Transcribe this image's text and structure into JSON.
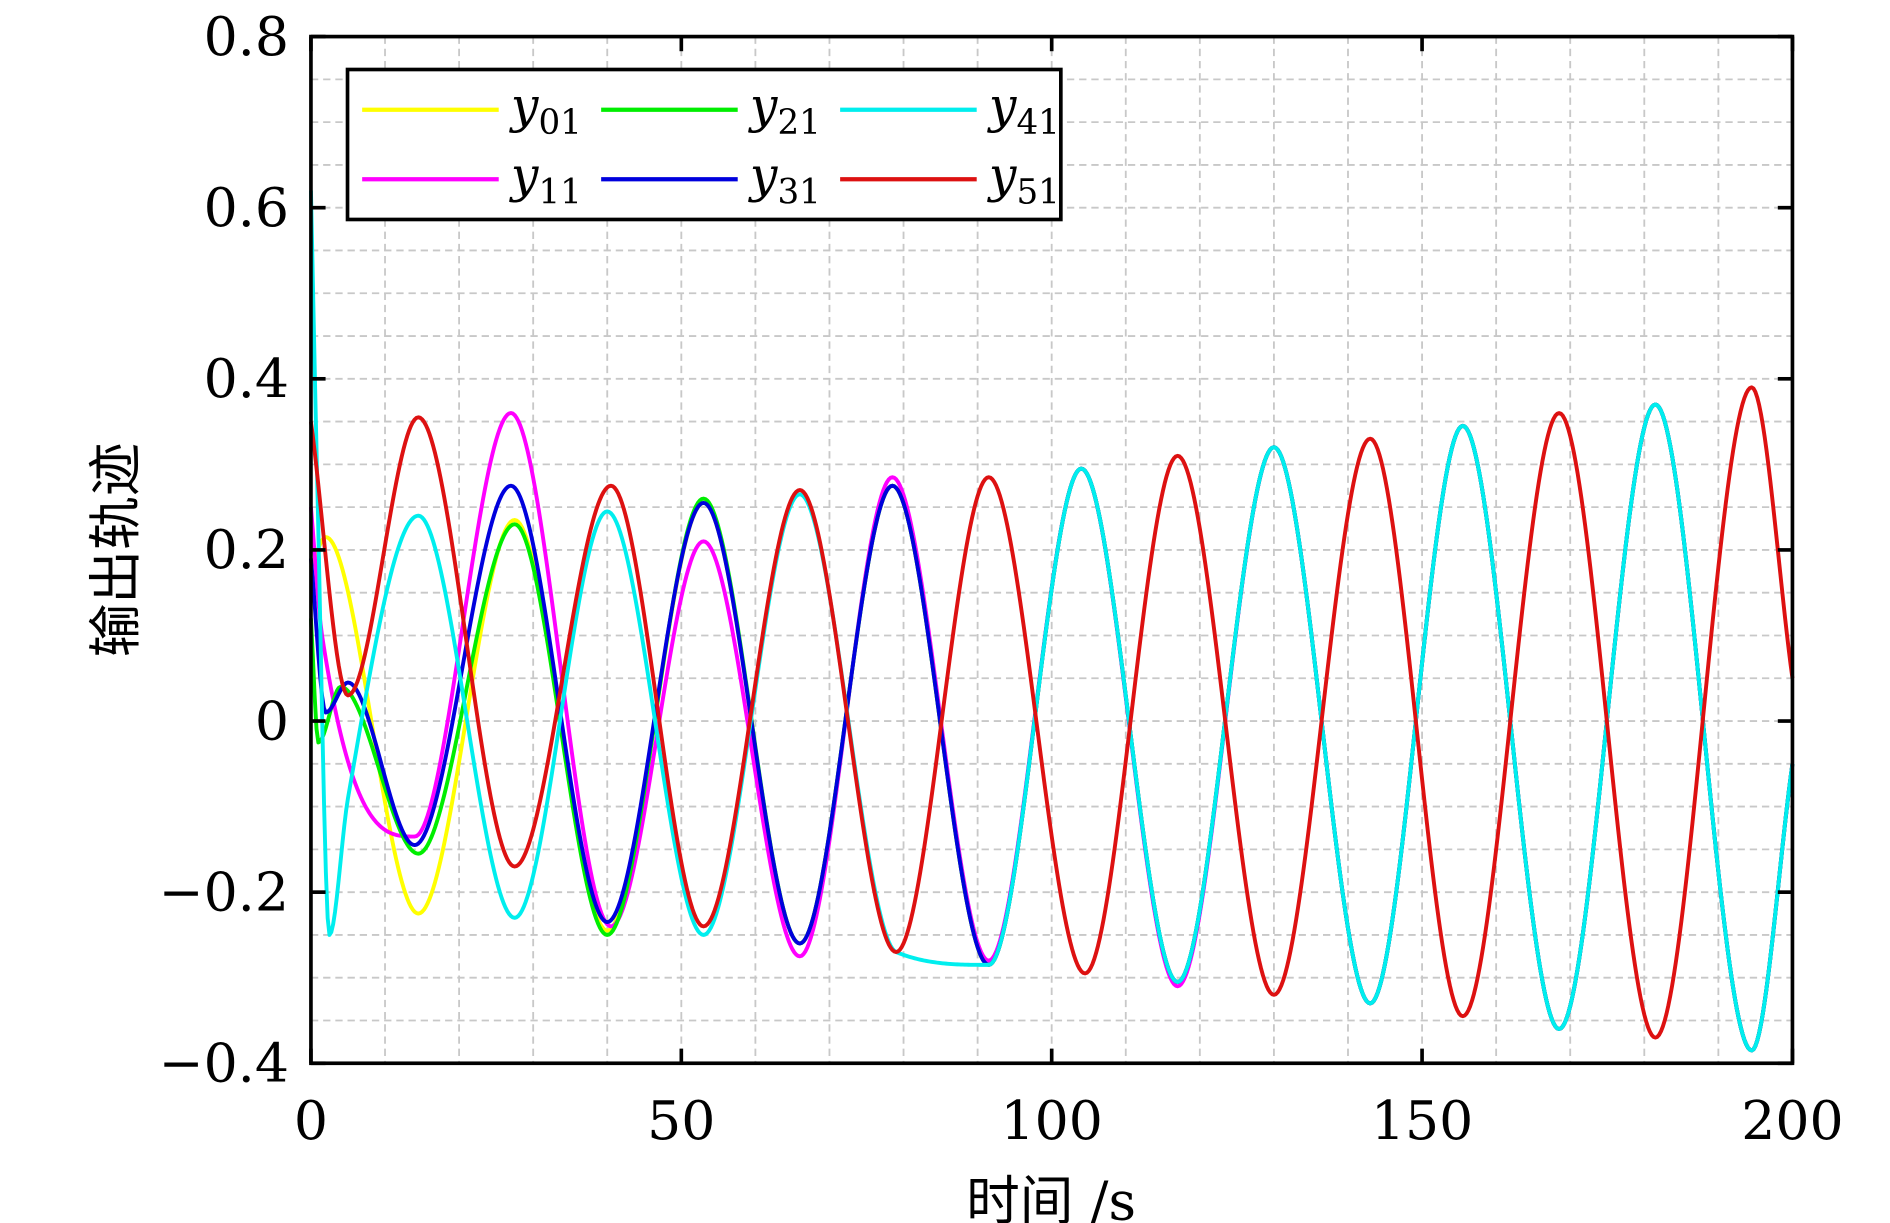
{
  "chart_data": {
    "type": "line",
    "title": "",
    "xlabel": "时间 /s",
    "ylabel": "输出轨迹",
    "xlim": [
      0,
      200
    ],
    "ylim": [
      -0.4,
      0.8
    ],
    "xticks": [
      0,
      50,
      100,
      150,
      200
    ],
    "xtick_labels": [
      "0",
      "50",
      "100",
      "150",
      "200"
    ],
    "yticks": [
      -0.4,
      -0.2,
      0,
      0.2,
      0.4,
      0.6,
      0.8
    ],
    "ytick_labels": [
      "−0.4",
      "−0.2",
      "0",
      "0.2",
      "0.4",
      "0.6",
      "0.8"
    ],
    "grid": true,
    "grid_minor_x_step": 10,
    "grid_minor_y_step": 0.05,
    "legend_position": "top-left",
    "series": [
      {
        "name": "y01",
        "base": "y",
        "sub": "01",
        "color": "#ffff00",
        "points": [
          [
            0,
            0.18
          ],
          [
            2,
            0.215
          ],
          [
            14.5,
            -0.225
          ],
          [
            27.5,
            0.235
          ],
          [
            40,
            -0.245
          ],
          [
            53,
            0.255
          ],
          [
            66,
            -0.26
          ],
          [
            78.5,
            0.275
          ],
          [
            91.5,
            -0.285
          ],
          [
            104,
            0.295
          ],
          [
            117,
            -0.305
          ],
          [
            130,
            0.32
          ],
          [
            143,
            -0.33
          ],
          [
            155.5,
            0.345
          ],
          [
            168.5,
            -0.36
          ],
          [
            181.5,
            0.37
          ],
          [
            194.5,
            -0.385
          ],
          [
            200,
            -0.05
          ]
        ]
      },
      {
        "name": "y11",
        "base": "y",
        "sub": "11",
        "color": "#ff00ff",
        "points": [
          [
            0,
            0.25
          ],
          [
            1.5,
            0.1
          ],
          [
            14,
            -0.135
          ],
          [
            27,
            0.36
          ],
          [
            40.5,
            -0.24
          ],
          [
            53,
            0.21
          ],
          [
            66,
            -0.275
          ],
          [
            78.5,
            0.285
          ],
          [
            91.5,
            -0.28
          ],
          [
            104,
            0.295
          ],
          [
            117,
            -0.31
          ],
          [
            130,
            0.32
          ],
          [
            143,
            -0.33
          ],
          [
            155.5,
            0.345
          ],
          [
            168.5,
            -0.36
          ],
          [
            181.5,
            0.37
          ],
          [
            194.5,
            -0.385
          ],
          [
            200,
            -0.05
          ]
        ]
      },
      {
        "name": "y21",
        "base": "y",
        "sub": "21",
        "color": "#00ee00",
        "points": [
          [
            0,
            0.12
          ],
          [
            1,
            -0.025
          ],
          [
            4,
            0.04
          ],
          [
            14.5,
            -0.155
          ],
          [
            27.5,
            0.23
          ],
          [
            40,
            -0.25
          ],
          [
            53,
            0.26
          ],
          [
            66,
            -0.26
          ],
          [
            78.5,
            0.275
          ],
          [
            91.5,
            -0.285
          ],
          [
            104,
            0.295
          ],
          [
            117,
            -0.305
          ],
          [
            130,
            0.32
          ],
          [
            143,
            -0.33
          ],
          [
            155.5,
            0.345
          ],
          [
            168.5,
            -0.36
          ],
          [
            181.5,
            0.37
          ],
          [
            194.5,
            -0.385
          ],
          [
            200,
            -0.05
          ]
        ]
      },
      {
        "name": "y31",
        "base": "y",
        "sub": "31",
        "color": "#0000dd",
        "points": [
          [
            0,
            0.19
          ],
          [
            2,
            0.01
          ],
          [
            5,
            0.045
          ],
          [
            14,
            -0.145
          ],
          [
            27,
            0.275
          ],
          [
            40,
            -0.235
          ],
          [
            53,
            0.255
          ],
          [
            66,
            -0.26
          ],
          [
            78.5,
            0.275
          ],
          [
            91.5,
            -0.285
          ],
          [
            104,
            0.295
          ],
          [
            117,
            -0.305
          ],
          [
            130,
            0.32
          ],
          [
            143,
            -0.33
          ],
          [
            155.5,
            0.345
          ],
          [
            168.5,
            -0.36
          ],
          [
            181.5,
            0.37
          ],
          [
            194.5,
            -0.385
          ],
          [
            200,
            -0.05
          ]
        ]
      },
      {
        "name": "y41",
        "base": "y",
        "sub": "41",
        "color": "#00eeee",
        "points": [
          [
            0,
            0.62
          ],
          [
            0.8,
            0.3
          ],
          [
            2.5,
            -0.25
          ],
          [
            5,
            -0.09
          ],
          [
            14.5,
            0.24
          ],
          [
            27.5,
            -0.23
          ],
          [
            40,
            0.245
          ],
          [
            53,
            -0.25
          ],
          [
            66,
            0.265
          ],
          [
            79,
            -0.27
          ],
          [
            91.5,
            -0.285
          ],
          [
            104,
            0.295
          ],
          [
            117,
            -0.305
          ],
          [
            130,
            0.32
          ],
          [
            143,
            -0.33
          ],
          [
            155.5,
            0.345
          ],
          [
            168.5,
            -0.36
          ],
          [
            181.5,
            0.37
          ],
          [
            194.5,
            -0.385
          ],
          [
            200,
            -0.05
          ]
        ]
      },
      {
        "name": "y51",
        "base": "y",
        "sub": "51",
        "color": "#dd1111",
        "points": [
          [
            0,
            0.35
          ],
          [
            5,
            0.03
          ],
          [
            14.5,
            0.355
          ],
          [
            27.5,
            -0.17
          ],
          [
            40.5,
            0.275
          ],
          [
            53,
            -0.24
          ],
          [
            66,
            0.27
          ],
          [
            79,
            -0.27
          ],
          [
            91.5,
            0.285
          ],
          [
            104.5,
            -0.295
          ],
          [
            117,
            0.31
          ],
          [
            130,
            -0.32
          ],
          [
            143,
            0.33
          ],
          [
            155.5,
            -0.345
          ],
          [
            168.5,
            0.36
          ],
          [
            181.5,
            -0.37
          ],
          [
            194.5,
            0.39
          ],
          [
            200,
            0.05
          ]
        ]
      }
    ]
  }
}
